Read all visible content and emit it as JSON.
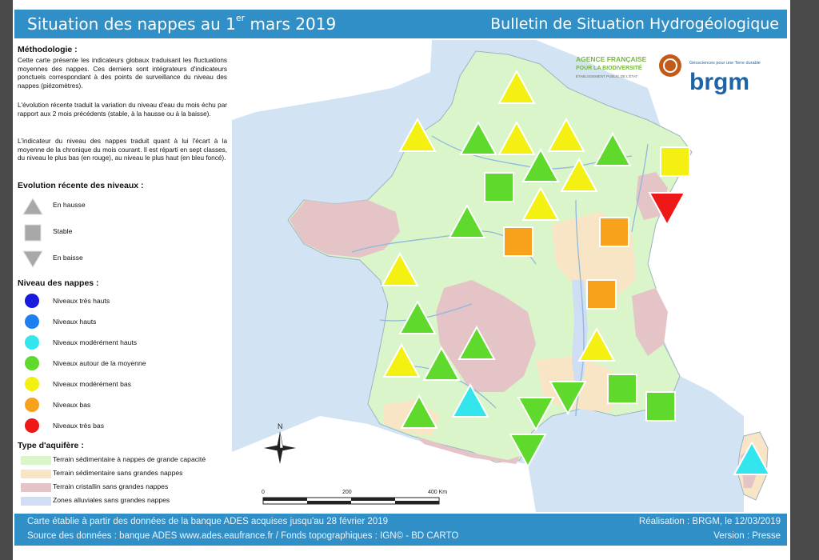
{
  "header": {
    "title_main": "Situation des nappes au 1",
    "title_sup": "er",
    "title_end": " mars 2019",
    "subtitle": "Bulletin de Situation Hydrogéologique"
  },
  "legend": {
    "methodology_title": "Méthodologie :",
    "methodology_p1": "Cette carte présente les indicateurs globaux traduisant les fluctuations moyennes des nappes. Ces derniers sont intégrateurs d'indicateurs ponctuels correspondant à des points de surveillance du niveau des nappes (piézomètres).",
    "methodology_p2": "L'évolution récente traduit la variation du niveau d'eau du mois échu par rapport aux 2 mois précédents (stable, à la hausse ou à la baisse).",
    "methodology_p3": "L'indicateur du niveau des nappes traduit quant à lui l'écart à la moyenne de la chronique du mois courant. Il est réparti en sept classes, du niveau le plus bas (en rouge), au niveau le plus haut (en bleu foncé).",
    "evolution_title": "Evolution récente des niveaux :",
    "evolution_items": [
      "En hausse",
      "Stable",
      "En baisse"
    ],
    "levels_title": "Niveau des nappes :",
    "levels": [
      {
        "label": "Niveaux très hauts",
        "color": "#1a1adc"
      },
      {
        "label": "Niveaux hauts",
        "color": "#1e7ff0"
      },
      {
        "label": "Niveaux modérément hauts",
        "color": "#33e6ee"
      },
      {
        "label": "Niveaux autour de la moyenne",
        "color": "#5fd92c"
      },
      {
        "label": "Niveaux modérément bas",
        "color": "#f4f012"
      },
      {
        "label": "Niveaux bas",
        "color": "#f7a21a"
      },
      {
        "label": "Niveaux très bas",
        "color": "#ee1818"
      }
    ],
    "aquifer_title": "Type d'aquifère :",
    "aquifers": [
      {
        "label": "Terrain sédimentaire à nappes de grande capacité",
        "color": "#d9f5c9"
      },
      {
        "label": "Terrain sédimentaire sans grandes nappes",
        "color": "#f7e5c6"
      },
      {
        "label": "Terrain cristallin sans grandes nappes",
        "color": "#e4c4c6"
      },
      {
        "label": "Zones alluviales sans grandes nappes",
        "color": "#cfddf5"
      }
    ]
  },
  "map": {
    "logo_afb_line1": "AGENCE FRANÇAISE",
    "logo_afb_line2": "POUR LA BIODIVERSITÉ",
    "logo_afb_line3": "ÉTABLISSEMENT PUBLIC DE L'ÉTAT",
    "logo_brgm_tagline": "Géosciences pour une Terre durable",
    "logo_brgm": "brgm",
    "north_label": "N",
    "scale_labels": [
      "0",
      "200",
      "400 Km"
    ],
    "colors": {
      "sea": "#d2e4f3",
      "neighbors": "#ffffff",
      "sedimentary": "#d9f5c9",
      "sed_small": "#f7e5c6",
      "crystalline": "#e4c4c6",
      "alluvial": "#cfddf5",
      "river": "#8fb8de"
    },
    "indicators": [
      {
        "shape": "up",
        "level": "moderately_low"
      },
      {
        "shape": "up",
        "level": "moderately_low"
      },
      {
        "shape": "up",
        "level": "average"
      },
      {
        "shape": "up",
        "level": "moderately_low"
      },
      {
        "shape": "up",
        "level": "moderately_low"
      },
      {
        "shape": "up",
        "level": "average"
      },
      {
        "shape": "stable",
        "level": "moderately_low"
      },
      {
        "shape": "down",
        "level": "very_low"
      },
      {
        "shape": "up",
        "level": "average"
      },
      {
        "shape": "up",
        "level": "moderately_low"
      },
      {
        "shape": "stable",
        "level": "average"
      },
      {
        "shape": "up",
        "level": "moderately_low"
      },
      {
        "shape": "up",
        "level": "average"
      },
      {
        "shape": "stable",
        "level": "low"
      },
      {
        "shape": "stable",
        "level": "low"
      },
      {
        "shape": "up",
        "level": "moderately_low"
      },
      {
        "shape": "stable",
        "level": "low"
      },
      {
        "shape": "up",
        "level": "average"
      },
      {
        "shape": "up",
        "level": "average"
      },
      {
        "shape": "up",
        "level": "moderately_low"
      },
      {
        "shape": "up",
        "level": "moderately_low"
      },
      {
        "shape": "up",
        "level": "average"
      },
      {
        "shape": "up",
        "level": "moderately_high"
      },
      {
        "shape": "up",
        "level": "average"
      },
      {
        "shape": "down",
        "level": "average"
      },
      {
        "shape": "down",
        "level": "average"
      },
      {
        "shape": "stable",
        "level": "average"
      },
      {
        "shape": "stable",
        "level": "average"
      },
      {
        "shape": "down",
        "level": "average"
      },
      {
        "shape": "up",
        "level": "moderately_high"
      }
    ],
    "level_colors": {
      "very_low": "#ee1818",
      "low": "#f7a21a",
      "moderately_low": "#f4f012",
      "average": "#5fd92c",
      "moderately_high": "#33e6ee",
      "high": "#1e7ff0",
      "very_high": "#1a1adc"
    }
  },
  "footer": {
    "line1": "Carte établie à partir des données de la banque ADES acquises jusqu'au 28 février 2019",
    "line2": "Source des données : banque ADES www.ades.eaufrance.fr / Fonds topographiques : IGN© - BD CARTO",
    "right1": "Réalisation : BRGM, le 12/03/2019",
    "right2": "Version : Presse"
  }
}
